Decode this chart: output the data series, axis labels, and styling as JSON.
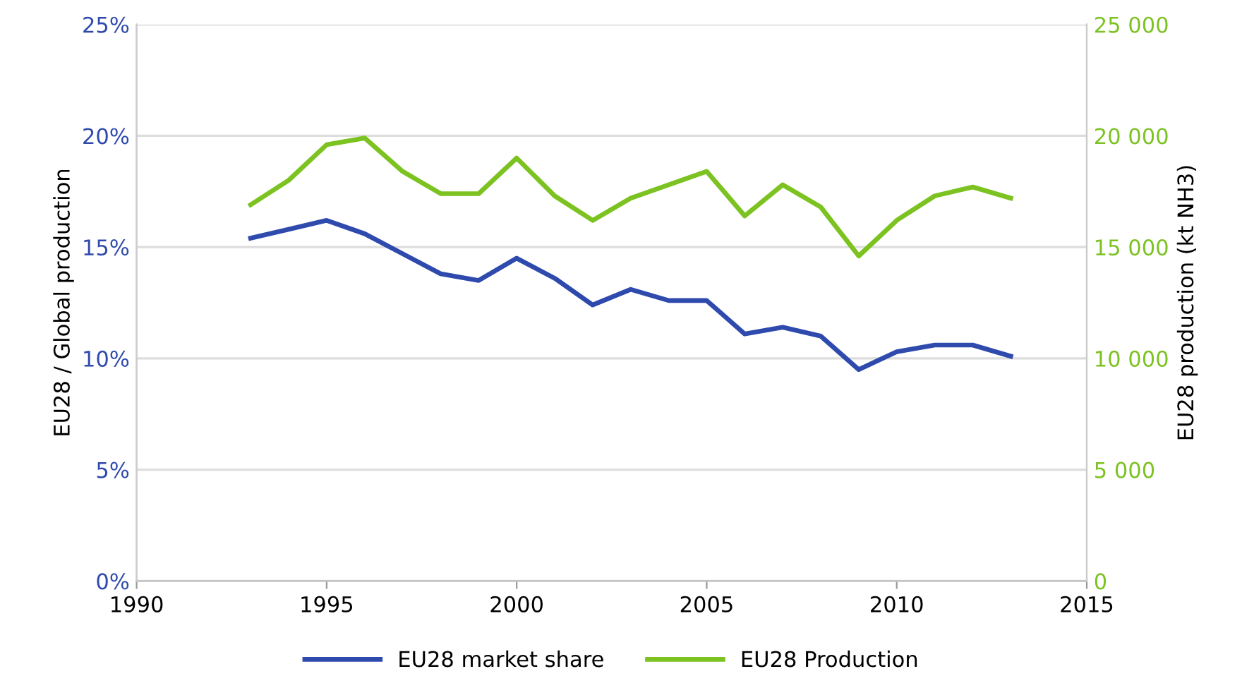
{
  "chart_data": {
    "type": "line",
    "x": [
      1993,
      1994,
      1995,
      1996,
      1997,
      1998,
      1999,
      2000,
      2001,
      2002,
      2003,
      2004,
      2005,
      2006,
      2007,
      2008,
      2009,
      2010,
      2011,
      2012,
      2013
    ],
    "series": [
      {
        "name": "EU28 market share",
        "color": "#2f4aad",
        "values": [
          15.4,
          15.8,
          16.2,
          15.6,
          14.7,
          13.8,
          13.5,
          14.5,
          13.6,
          12.4,
          13.1,
          12.6,
          12.6,
          11.1,
          11.4,
          11.0,
          9.5,
          10.3,
          10.6,
          10.6,
          10.1
        ]
      },
      {
        "name": "EU28 Production",
        "color": "#7cc220",
        "axis": "y2",
        "values": [
          16900,
          18000,
          19600,
          19900,
          18400,
          17400,
          17400,
          19000,
          17300,
          16200,
          17200,
          17800,
          18400,
          16400,
          17800,
          16800,
          14600,
          16200,
          17300,
          17700,
          17200
        ]
      }
    ],
    "xlim": [
      1990,
      2015
    ],
    "xticks": [
      1990,
      1995,
      2000,
      2005,
      2010,
      2015
    ],
    "ylim": [
      0,
      25
    ],
    "yticks": [
      {
        "value": 0,
        "label": "0%"
      },
      {
        "value": 5,
        "label": "5%"
      },
      {
        "value": 10,
        "label": "10%"
      },
      {
        "value": 15,
        "label": "15%"
      },
      {
        "value": 20,
        "label": "20%"
      },
      {
        "value": 25,
        "label": "25%"
      }
    ],
    "y2lim": [
      0,
      25000
    ],
    "y2ticks": [
      {
        "value": 0,
        "label": "0"
      },
      {
        "value": 5000,
        "label": "5 000"
      },
      {
        "value": 10000,
        "label": "10 000"
      },
      {
        "value": 15000,
        "label": "15 000"
      },
      {
        "value": 20000,
        "label": "20 000"
      },
      {
        "value": 25000,
        "label": "25 000"
      }
    ],
    "ylabel": "EU28 / Global production",
    "y2label": "EU28 production (kt NH3)",
    "grid": "y",
    "legend": "bottom",
    "marker": "none",
    "line_style": "solid"
  }
}
